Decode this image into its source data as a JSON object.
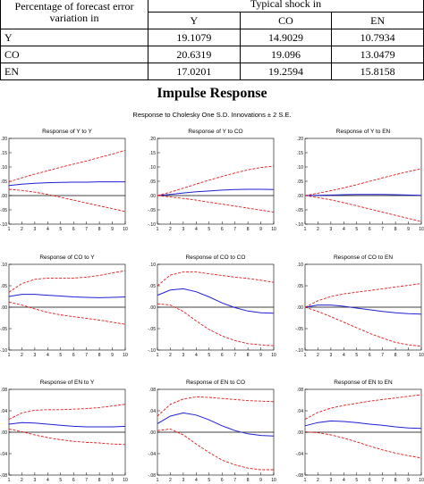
{
  "table": {
    "corner_label": "Percentage of forecast error variation in",
    "group_header": "Typical shock in",
    "columns": [
      "Y",
      "CO",
      "EN"
    ],
    "rows": [
      {
        "label": "Y",
        "values": [
          "19.1079",
          "14.9029",
          "10.7934"
        ]
      },
      {
        "label": "CO",
        "values": [
          "20.6319",
          "19.096",
          "13.0479"
        ]
      },
      {
        "label": "EN",
        "values": [
          "17.0201",
          "19.2594",
          "15.8158"
        ]
      }
    ]
  },
  "figure": {
    "title": "Impulse Response",
    "subtitle": "Response to Cholesky One S.D. Innovations ± 2 S.E."
  },
  "colors": {
    "response": "#1f1fd6",
    "band": "#e01a1a",
    "zero": "#000000"
  },
  "chart_data": [
    {
      "type": "line",
      "title": "Response of Y to Y",
      "x": [
        1,
        2,
        3,
        4,
        5,
        6,
        7,
        8,
        9,
        10
      ],
      "ylim": [
        -0.1,
        0.2
      ],
      "yticks": [
        ".20",
        ".15",
        ".10",
        ".05",
        ".00",
        "-.05",
        "-.10"
      ],
      "xticks": [
        "1",
        "2",
        "3",
        "4",
        "5",
        "6",
        "7",
        "8",
        "9",
        "10"
      ],
      "series": [
        {
          "role": "response",
          "values": [
            0.035,
            0.04,
            0.043,
            0.045,
            0.046,
            0.047,
            0.047,
            0.048,
            0.048,
            0.048
          ]
        },
        {
          "role": "upper",
          "values": [
            0.048,
            0.062,
            0.075,
            0.087,
            0.099,
            0.11,
            0.121,
            0.133,
            0.145,
            0.158
          ]
        },
        {
          "role": "lower",
          "values": [
            0.022,
            0.018,
            0.012,
            0.004,
            -0.006,
            -0.016,
            -0.026,
            -0.036,
            -0.046,
            -0.056
          ]
        }
      ]
    },
    {
      "type": "line",
      "title": "Response of Y to CO",
      "x": [
        1,
        2,
        3,
        4,
        5,
        6,
        7,
        8,
        9,
        10
      ],
      "ylim": [
        -0.1,
        0.2
      ],
      "yticks": [
        ".20",
        ".15",
        ".10",
        ".05",
        ".00",
        "-.05",
        "-.10"
      ],
      "xticks": [
        "1",
        "2",
        "3",
        "4",
        "5",
        "6",
        "7",
        "8",
        "9",
        "10"
      ],
      "series": [
        {
          "role": "response",
          "values": [
            0.0,
            0.004,
            0.009,
            0.013,
            0.016,
            0.019,
            0.021,
            0.022,
            0.022,
            0.021
          ]
        },
        {
          "role": "upper",
          "values": [
            0.0,
            0.012,
            0.026,
            0.04,
            0.054,
            0.067,
            0.079,
            0.09,
            0.098,
            0.103
          ]
        },
        {
          "role": "lower",
          "values": [
            0.0,
            -0.005,
            -0.01,
            -0.016,
            -0.023,
            -0.03,
            -0.037,
            -0.044,
            -0.051,
            -0.058
          ]
        }
      ]
    },
    {
      "type": "line",
      "title": "Response of Y to EN",
      "x": [
        1,
        2,
        3,
        4,
        5,
        6,
        7,
        8,
        9,
        10
      ],
      "ylim": [
        -0.1,
        0.2
      ],
      "yticks": [
        ".20",
        ".15",
        ".10",
        ".05",
        ".00",
        "-.05",
        "-.10"
      ],
      "xticks": [
        "1",
        "2",
        "3",
        "4",
        "5",
        "6",
        "7",
        "8",
        "9",
        "10"
      ],
      "series": [
        {
          "role": "response",
          "values": [
            0.0,
            0.001,
            0.002,
            0.003,
            0.004,
            0.004,
            0.004,
            0.003,
            0.002,
            0.001
          ]
        },
        {
          "role": "upper",
          "values": [
            0.0,
            0.008,
            0.017,
            0.027,
            0.038,
            0.05,
            0.062,
            0.073,
            0.084,
            0.094
          ]
        },
        {
          "role": "lower",
          "values": [
            0.0,
            -0.007,
            -0.015,
            -0.025,
            -0.036,
            -0.047,
            -0.058,
            -0.069,
            -0.08,
            -0.091
          ]
        }
      ]
    },
    {
      "type": "line",
      "title": "Response of CO to Y",
      "x": [
        1,
        2,
        3,
        4,
        5,
        6,
        7,
        8,
        9,
        10
      ],
      "ylim": [
        -0.1,
        0.1
      ],
      "yticks": [
        ".10",
        ".05",
        ".00",
        "-.05",
        "-.10"
      ],
      "xticks": [
        "1",
        "2",
        "3",
        "4",
        "5",
        "6",
        "7",
        "8",
        "9",
        "10"
      ],
      "series": [
        {
          "role": "response",
          "values": [
            0.025,
            0.03,
            0.03,
            0.028,
            0.026,
            0.024,
            0.023,
            0.022,
            0.023,
            0.024
          ]
        },
        {
          "role": "upper",
          "values": [
            0.035,
            0.055,
            0.065,
            0.068,
            0.068,
            0.068,
            0.07,
            0.074,
            0.08,
            0.085
          ]
        },
        {
          "role": "lower",
          "values": [
            0.012,
            0.005,
            -0.004,
            -0.012,
            -0.018,
            -0.022,
            -0.026,
            -0.03,
            -0.035,
            -0.04
          ]
        }
      ]
    },
    {
      "type": "line",
      "title": "Response of CO to CO",
      "x": [
        1,
        2,
        3,
        4,
        5,
        6,
        7,
        8,
        9,
        10
      ],
      "ylim": [
        -0.1,
        0.1
      ],
      "yticks": [
        ".10",
        ".05",
        ".00",
        "-.05",
        "-.10"
      ],
      "xticks": [
        "1",
        "2",
        "3",
        "4",
        "5",
        "6",
        "7",
        "8",
        "9",
        "10"
      ],
      "series": [
        {
          "role": "response",
          "values": [
            0.028,
            0.04,
            0.043,
            0.036,
            0.024,
            0.01,
            -0.001,
            -0.009,
            -0.013,
            -0.014
          ]
        },
        {
          "role": "upper",
          "values": [
            0.05,
            0.075,
            0.082,
            0.082,
            0.078,
            0.074,
            0.07,
            0.067,
            0.063,
            0.058
          ]
        },
        {
          "role": "lower",
          "values": [
            0.008,
            0.005,
            -0.01,
            -0.032,
            -0.052,
            -0.067,
            -0.078,
            -0.085,
            -0.088,
            -0.09
          ]
        }
      ]
    },
    {
      "type": "line",
      "title": "Response of CO to EN",
      "x": [
        1,
        2,
        3,
        4,
        5,
        6,
        7,
        8,
        9,
        10
      ],
      "ylim": [
        -0.1,
        0.1
      ],
      "yticks": [
        ".10",
        ".05",
        ".00",
        "-.05",
        "-.10"
      ],
      "xticks": [
        "1",
        "2",
        "3",
        "4",
        "5",
        "6",
        "7",
        "8",
        "9",
        "10"
      ],
      "series": [
        {
          "role": "response",
          "values": [
            0.0,
            0.005,
            0.005,
            0.002,
            -0.002,
            -0.006,
            -0.01,
            -0.013,
            -0.015,
            -0.016
          ]
        },
        {
          "role": "upper",
          "values": [
            0.0,
            0.015,
            0.025,
            0.031,
            0.035,
            0.039,
            0.043,
            0.047,
            0.051,
            0.055
          ]
        },
        {
          "role": "lower",
          "values": [
            0.0,
            -0.01,
            -0.022,
            -0.035,
            -0.048,
            -0.061,
            -0.072,
            -0.082,
            -0.088,
            -0.091
          ]
        }
      ]
    },
    {
      "type": "line",
      "title": "Response of EN to Y",
      "x": [
        1,
        2,
        3,
        4,
        5,
        6,
        7,
        8,
        9,
        10
      ],
      "ylim": [
        -0.08,
        0.08
      ],
      "yticks": [
        ".08",
        ".04",
        ".00",
        "-.04",
        "-.08"
      ],
      "xticks": [
        "1",
        "2",
        "3",
        "4",
        "5",
        "6",
        "7",
        "8",
        "9",
        "10"
      ],
      "series": [
        {
          "role": "response",
          "values": [
            0.015,
            0.018,
            0.017,
            0.015,
            0.013,
            0.011,
            0.01,
            0.01,
            0.01,
            0.011
          ]
        },
        {
          "role": "upper",
          "values": [
            0.024,
            0.036,
            0.041,
            0.042,
            0.042,
            0.043,
            0.044,
            0.046,
            0.049,
            0.052
          ]
        },
        {
          "role": "lower",
          "values": [
            0.006,
            0.001,
            -0.005,
            -0.01,
            -0.014,
            -0.017,
            -0.019,
            -0.02,
            -0.022,
            -0.023
          ]
        }
      ]
    },
    {
      "type": "line",
      "title": "Response of EN to CO",
      "x": [
        1,
        2,
        3,
        4,
        5,
        6,
        7,
        8,
        9,
        10
      ],
      "ylim": [
        -0.08,
        0.08
      ],
      "yticks": [
        ".08",
        ".04",
        ".00",
        "-.04",
        "-.08"
      ],
      "xticks": [
        "1",
        "2",
        "3",
        "4",
        "5",
        "6",
        "7",
        "8",
        "9",
        "10"
      ],
      "series": [
        {
          "role": "response",
          "values": [
            0.016,
            0.03,
            0.036,
            0.032,
            0.023,
            0.012,
            0.003,
            -0.003,
            -0.006,
            -0.007
          ]
        },
        {
          "role": "upper",
          "values": [
            0.03,
            0.052,
            0.062,
            0.066,
            0.065,
            0.063,
            0.061,
            0.059,
            0.058,
            0.057
          ]
        },
        {
          "role": "lower",
          "values": [
            0.003,
            0.006,
            -0.005,
            -0.022,
            -0.038,
            -0.052,
            -0.061,
            -0.067,
            -0.07,
            -0.07
          ]
        }
      ]
    },
    {
      "type": "line",
      "title": "Response of EN to EN",
      "x": [
        1,
        2,
        3,
        4,
        5,
        6,
        7,
        8,
        9,
        10
      ],
      "ylim": [
        -0.08,
        0.08
      ],
      "yticks": [
        ".08",
        ".04",
        ".00",
        "-.04",
        "-.08"
      ],
      "xticks": [
        "1",
        "2",
        "3",
        "4",
        "5",
        "6",
        "7",
        "8",
        "9",
        "10"
      ],
      "series": [
        {
          "role": "response",
          "values": [
            0.012,
            0.018,
            0.021,
            0.02,
            0.018,
            0.015,
            0.013,
            0.01,
            0.008,
            0.007
          ]
        },
        {
          "role": "upper",
          "values": [
            0.024,
            0.037,
            0.045,
            0.05,
            0.054,
            0.058,
            0.061,
            0.064,
            0.067,
            0.07
          ]
        },
        {
          "role": "lower",
          "values": [
            0.001,
            -0.001,
            -0.005,
            -0.011,
            -0.018,
            -0.026,
            -0.033,
            -0.039,
            -0.044,
            -0.048
          ]
        }
      ]
    }
  ]
}
